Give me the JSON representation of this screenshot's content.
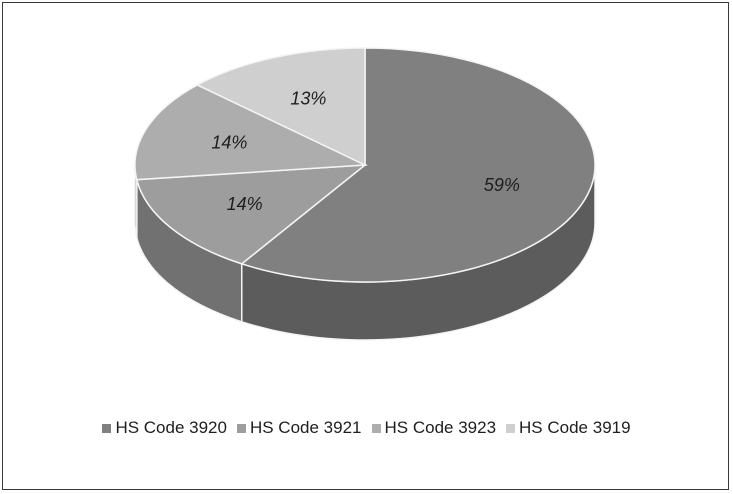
{
  "chart_data": {
    "type": "pie",
    "style": "3d",
    "categories": [
      "HS Code 3920",
      "HS Code 3921",
      "HS Code 3923",
      "HS Code 3919"
    ],
    "values": [
      59,
      14,
      14,
      13
    ],
    "labels": [
      "59%",
      "14%",
      "14%",
      "13%"
    ],
    "legend_position": "bottom",
    "colors": [
      "#808080",
      "#9d9d9d",
      "#adadad",
      "#cfcfcf"
    ]
  }
}
